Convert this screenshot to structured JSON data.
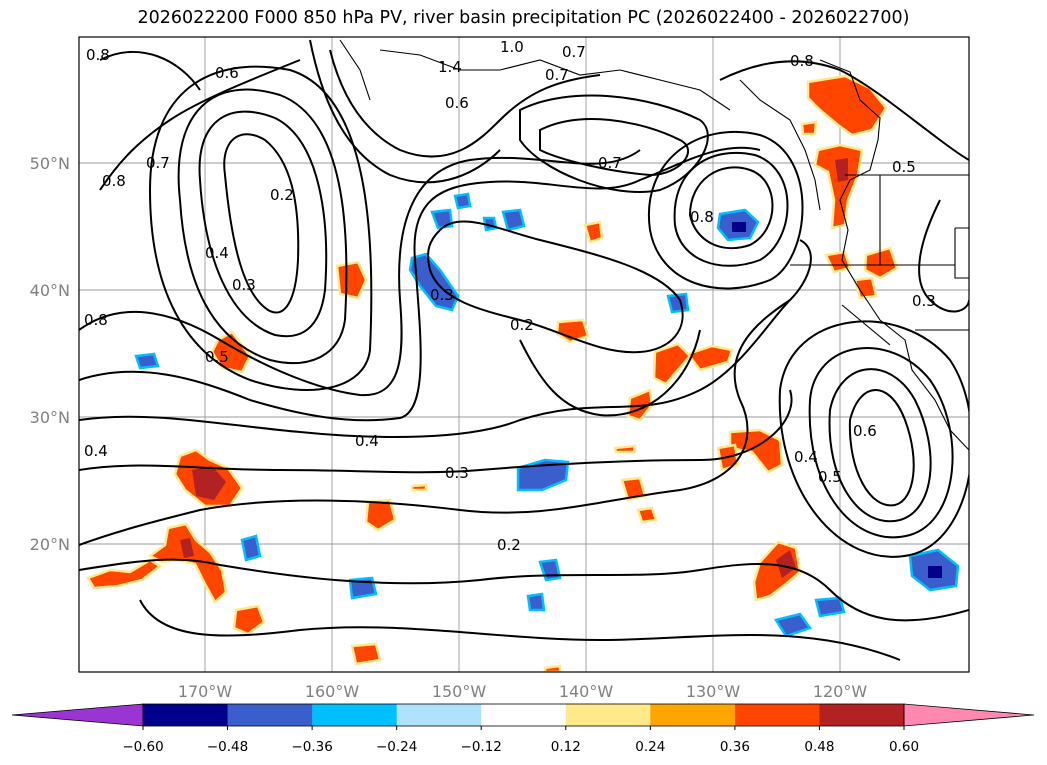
{
  "title": "2026022200 F000 850 hPa PV, river basin precipitation PC (2026022400 - 2026022700)",
  "latitude_labels": [
    "50°N",
    "40°N",
    "30°N",
    "20°N"
  ],
  "longitude_labels": [
    "170°W",
    "160°W",
    "150°W",
    "140°W",
    "130°W",
    "120°W"
  ],
  "contour_labels": [
    "0.8",
    "0.6",
    "1.4",
    "1.0",
    "0.7",
    "0.8",
    "0.8",
    "0.7",
    "0.2",
    "0.6",
    "0.7",
    "0.7",
    "0.5",
    "0.8",
    "0.4",
    "0.3",
    "0.8",
    "0.5",
    "0.3",
    "0.2",
    "0.3",
    "0.4",
    "0.3",
    "0.2",
    "0.6",
    "0.4",
    "0.5"
  ],
  "colorbar": {
    "tick_labels": [
      "−0.60",
      "−0.48",
      "−0.36",
      "−0.24",
      "−0.12",
      "0.12",
      "0.24",
      "0.36",
      "0.48",
      "0.60"
    ],
    "colors": [
      "#9a35d4",
      "#00008b",
      "#3a5fcd",
      "#00bfff",
      "#b0e2ff",
      "#ffffff",
      "#ffe98a",
      "#ffa500",
      "#ff4500",
      "#b22222",
      "#ff88b0"
    ]
  },
  "chart_data": {
    "type": "heatmap",
    "title": "2026022200 F000 850 hPa PV, river basin precipitation PC (2026022400 - 2026022700)",
    "lon_range": [
      -180,
      -110
    ],
    "lat_range": [
      10,
      60
    ],
    "xlabel": "",
    "ylabel": "",
    "colorbar_levels": [
      -0.6,
      -0.48,
      -0.36,
      -0.24,
      -0.12,
      0.12,
      0.24,
      0.36,
      0.48,
      0.6
    ],
    "contour_levels_shown": [
      0.2,
      0.3,
      0.4,
      0.5,
      0.6,
      0.7,
      0.8,
      1.0,
      1.4
    ]
  }
}
